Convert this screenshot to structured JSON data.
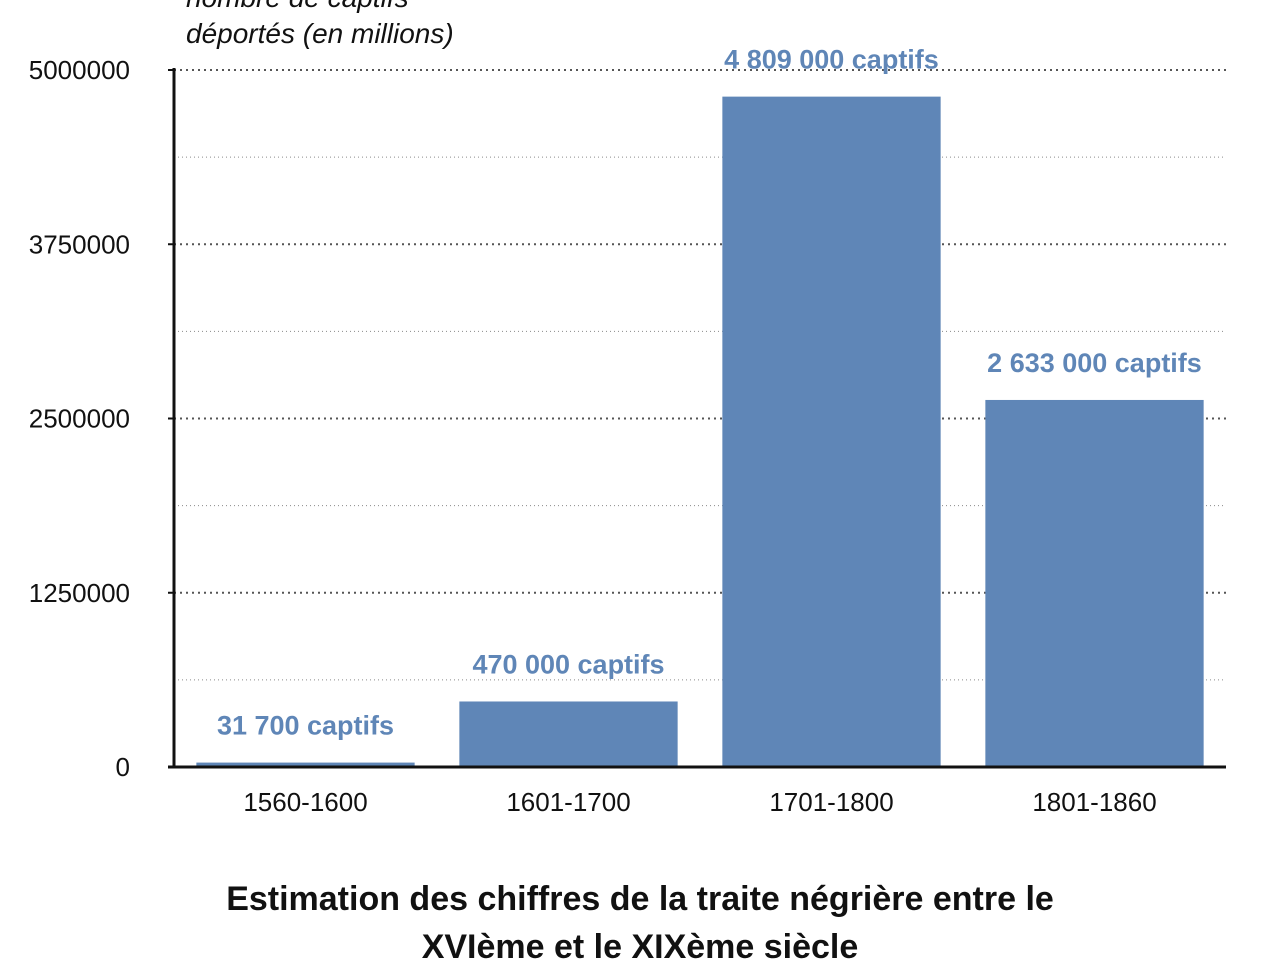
{
  "chart_data": {
    "type": "bar",
    "title_lines": [
      "Estimation des chiffres de la traite négrière entre le",
      "XVIème et le XIXème siècle"
    ],
    "ylabel_lines": [
      "nombre de captifs",
      "déportés (en millions)"
    ],
    "xlabel": "",
    "categories": [
      "1560-1600",
      "1601-1700",
      "1701-1800",
      "1801-1860"
    ],
    "values": [
      31700,
      470000,
      4809000,
      2633000
    ],
    "data_labels": [
      "31 700 captifs",
      "470 000 captifs",
      "4 809 000 captifs",
      "2 633 000 captifs"
    ],
    "yticks": [
      0,
      1250000,
      2500000,
      3750000,
      5000000
    ],
    "ytick_labels": [
      "0",
      "1250000",
      "2500000",
      "3750000",
      "5000000"
    ],
    "ylim": [
      0,
      5000000
    ],
    "grid": true,
    "legend": "none",
    "colors": {
      "bar": "#5f86b7",
      "data_label": "#5f86b7",
      "axis": "#111111",
      "grid": "#555555"
    }
  }
}
